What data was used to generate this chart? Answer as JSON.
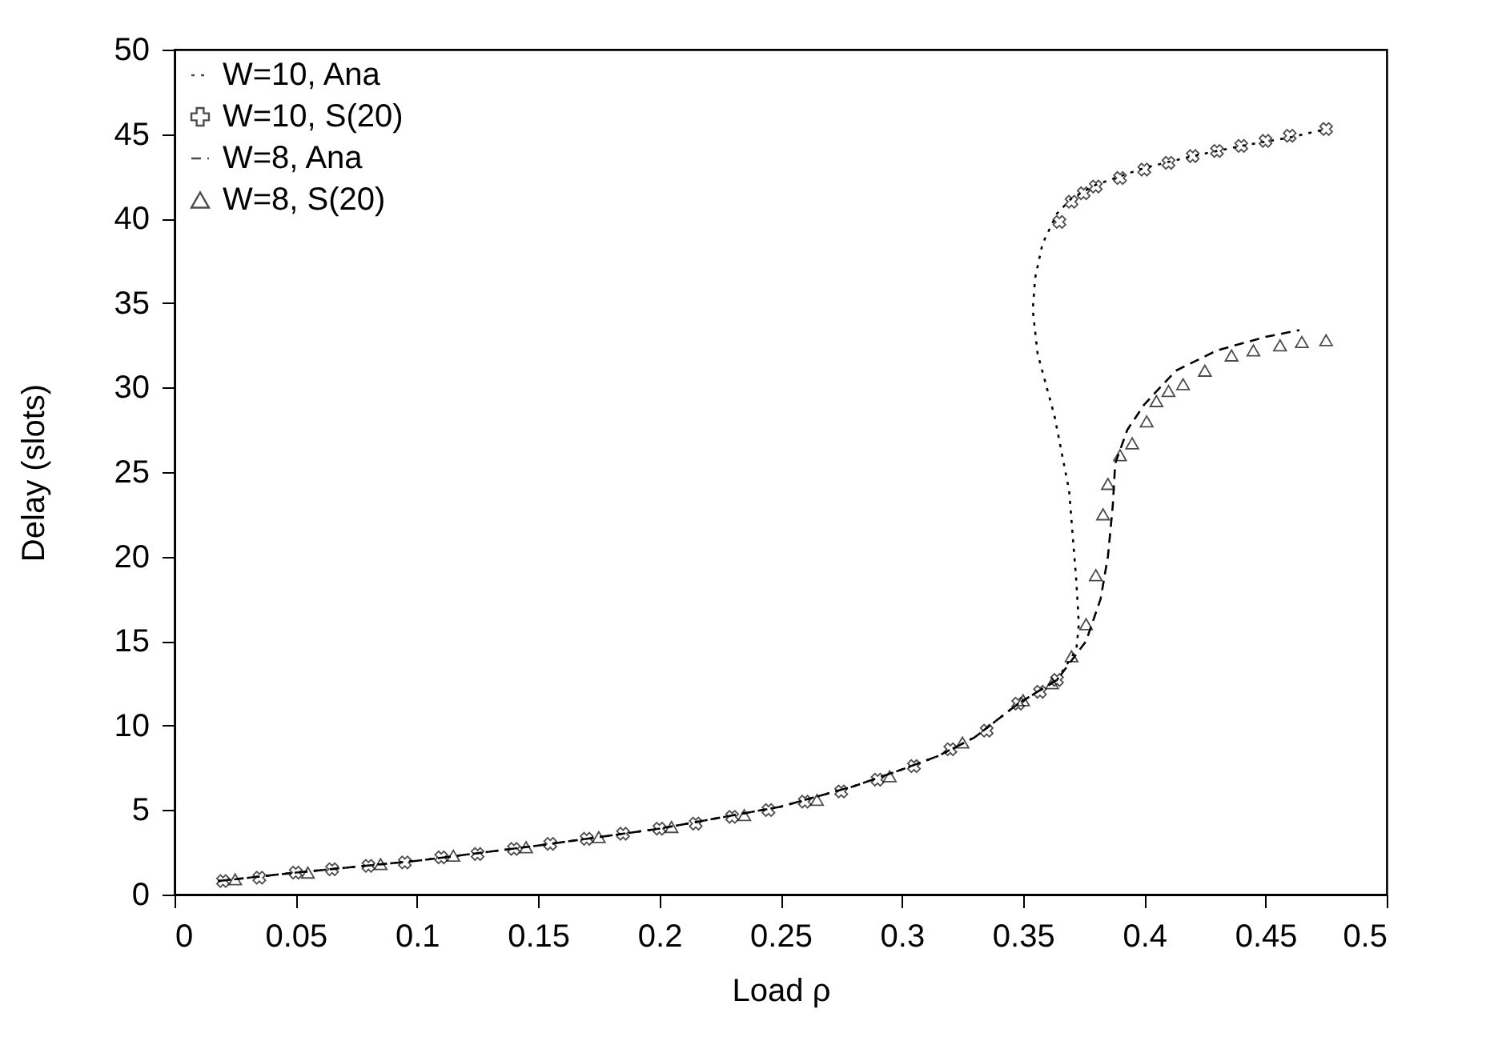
{
  "chart_data": {
    "type": "line",
    "xlabel": "Load ρ",
    "ylabel": "Delay (slots)",
    "xlim": [
      0,
      0.5
    ],
    "xticks": [
      0,
      0.05,
      0.1,
      0.15,
      0.2,
      0.25,
      0.3,
      0.35,
      0.4,
      0.45,
      0.5
    ],
    "ylim": [
      0,
      50
    ],
    "yticks": [
      0,
      5,
      10,
      15,
      20,
      25,
      30,
      35,
      40,
      45,
      50
    ],
    "grid": false,
    "legend": "top left",
    "series": [
      {
        "name": "W=10, Ana",
        "line_style": "dotted",
        "marker": "none",
        "color": "#000000",
        "x": [
          0.018,
          0.05,
          0.1,
          0.15,
          0.2,
          0.25,
          0.28,
          0.3,
          0.315,
          0.33,
          0.348,
          0.364,
          0.372,
          0.373,
          0.372,
          0.369,
          0.363,
          0.356,
          0.354,
          0.355,
          0.358,
          0.364,
          0.37,
          0.38,
          0.4,
          0.42,
          0.44,
          0.46,
          0.475
        ],
        "values": [
          0.8,
          1.3,
          2.0,
          2.9,
          3.9,
          5.2,
          6.4,
          7.4,
          8.2,
          9.3,
          11.3,
          12.7,
          14.5,
          16.0,
          18.5,
          23.9,
          28.3,
          32.0,
          34.6,
          36.5,
          38.5,
          40.3,
          41.2,
          42.0,
          43.0,
          43.7,
          44.3,
          44.8,
          45.3
        ]
      },
      {
        "name": "W=10, S(20)",
        "type": "scatter",
        "marker": "cross",
        "color": "#000000",
        "x": [
          0.02,
          0.035,
          0.05,
          0.065,
          0.08,
          0.095,
          0.11,
          0.125,
          0.14,
          0.155,
          0.17,
          0.185,
          0.2,
          0.215,
          0.23,
          0.245,
          0.26,
          0.275,
          0.29,
          0.305,
          0.32,
          0.335,
          0.348,
          0.357,
          0.364,
          0.365,
          0.37,
          0.375,
          0.38,
          0.39,
          0.4,
          0.41,
          0.42,
          0.43,
          0.44,
          0.45,
          0.46,
          0.475
        ],
        "values": [
          0.8,
          1.0,
          1.3,
          1.5,
          1.7,
          1.9,
          2.2,
          2.4,
          2.7,
          3.0,
          3.3,
          3.6,
          3.9,
          4.2,
          4.6,
          5.0,
          5.5,
          6.1,
          6.8,
          7.6,
          8.6,
          9.7,
          11.3,
          12.0,
          12.7,
          39.8,
          41.0,
          41.5,
          41.9,
          42.4,
          42.9,
          43.3,
          43.7,
          44.0,
          44.3,
          44.6,
          44.9,
          45.3
        ]
      },
      {
        "name": "W=8, Ana",
        "line_style": "dashed",
        "marker": "none",
        "color": "#000000",
        "x": [
          0.018,
          0.05,
          0.1,
          0.15,
          0.2,
          0.25,
          0.28,
          0.3,
          0.315,
          0.33,
          0.348,
          0.364,
          0.376,
          0.382,
          0.385,
          0.387,
          0.388,
          0.393,
          0.4,
          0.413,
          0.43,
          0.45,
          0.464
        ],
        "values": [
          0.8,
          1.3,
          2.0,
          2.9,
          3.9,
          5.2,
          6.4,
          7.4,
          8.2,
          9.3,
          11.3,
          12.7,
          15.0,
          17.5,
          20.0,
          23.0,
          25.5,
          27.5,
          29.0,
          31.0,
          32.2,
          33.0,
          33.4
        ]
      },
      {
        "name": "W=8, S(20)",
        "type": "scatter",
        "marker": "triangle",
        "color": "#000000",
        "x": [
          0.025,
          0.055,
          0.085,
          0.115,
          0.145,
          0.175,
          0.205,
          0.235,
          0.265,
          0.295,
          0.325,
          0.35,
          0.362,
          0.37,
          0.376,
          0.38,
          0.383,
          0.385,
          0.39,
          0.395,
          0.401,
          0.405,
          0.41,
          0.416,
          0.425,
          0.436,
          0.445,
          0.456,
          0.465,
          0.475
        ],
        "values": [
          0.9,
          1.3,
          1.8,
          2.3,
          2.8,
          3.4,
          4.0,
          4.7,
          5.6,
          7.0,
          9.0,
          11.5,
          12.5,
          14.1,
          16.0,
          18.9,
          22.5,
          24.3,
          26.0,
          26.7,
          28.0,
          29.2,
          29.8,
          30.2,
          31.0,
          31.9,
          32.2,
          32.5,
          32.7,
          32.8
        ]
      }
    ]
  }
}
